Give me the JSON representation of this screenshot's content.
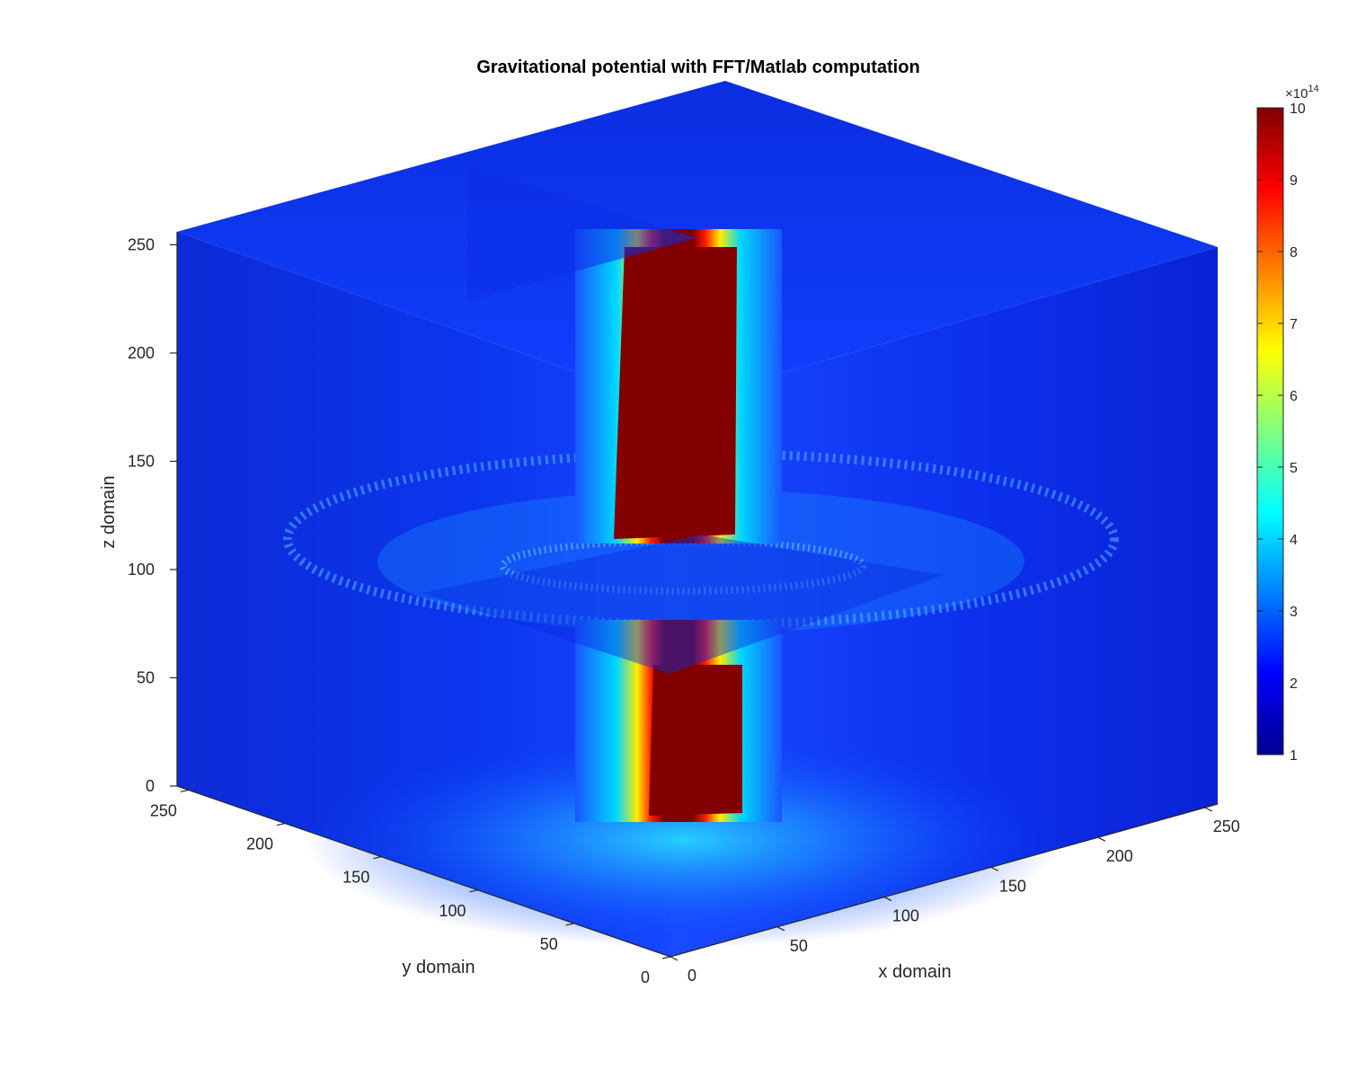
{
  "chart_data": {
    "type": "heatmap",
    "subtype": "3d-slice",
    "title": "Gravitational potential with FFT/Matlab computation",
    "xlabel": "x domain",
    "ylabel": "y domain",
    "zlabel": "z domain",
    "xlim": [
      0,
      256
    ],
    "ylim": [
      0,
      256
    ],
    "zlim": [
      0,
      256
    ],
    "x_ticks": [
      "0",
      "50",
      "100",
      "150",
      "200",
      "250"
    ],
    "y_ticks": [
      "0",
      "50",
      "100",
      "150",
      "200",
      "250"
    ],
    "z_ticks": [
      "0",
      "50",
      "100",
      "150",
      "200",
      "250"
    ],
    "slices": {
      "x": 128,
      "y": 128,
      "z": 100
    },
    "colormap": "jet",
    "colorbar": {
      "location": "right",
      "clim": [
        1,
        10
      ],
      "ticks": [
        "1",
        "2",
        "3",
        "4",
        "5",
        "6",
        "7",
        "8",
        "9",
        "10"
      ],
      "multiplier": "×10",
      "exponent": "14"
    },
    "colors": {
      "background": "#ffffff",
      "axis": "#262626",
      "jet_low": "#00008f",
      "jet_high": "#800000"
    }
  }
}
